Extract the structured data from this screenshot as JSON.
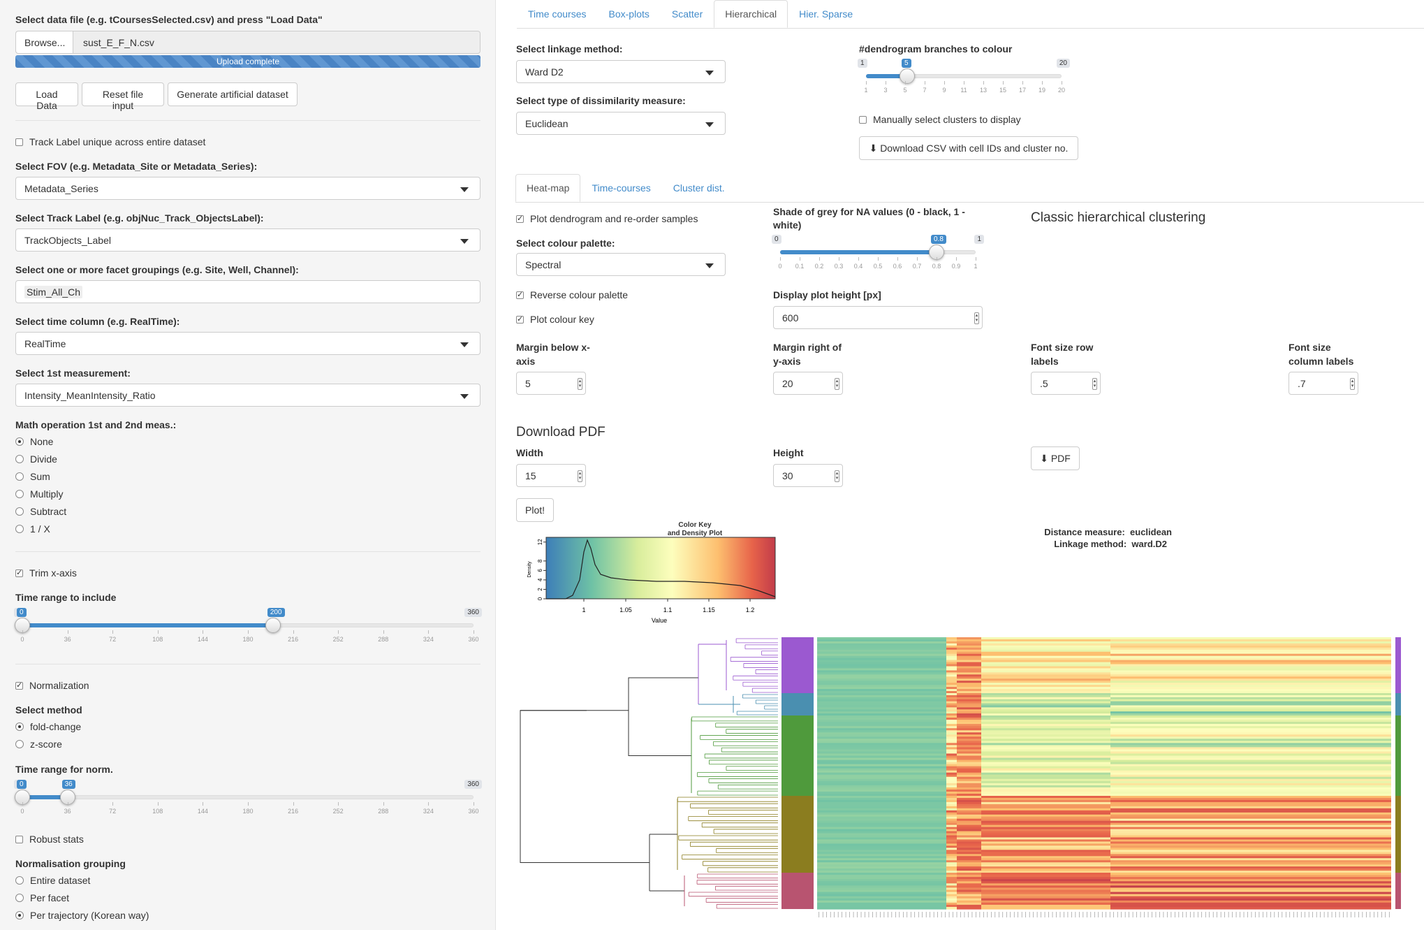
{
  "sidebar": {
    "file_label": "Select data file (e.g. tCoursesSelected.csv) and press \"Load Data\"",
    "browse_label": "Browse...",
    "file_name": "sust_E_F_N.csv",
    "upload_status": "Upload complete",
    "load_data": "Load Data",
    "reset_file": "Reset file input",
    "generate_artificial": "Generate artificial dataset",
    "track_unique_label": "Track Label unique across entire dataset",
    "fov_label": "Select FOV (e.g. Metadata_Site or Metadata_Series):",
    "fov_value": "Metadata_Series",
    "track_label": "Select Track Label (e.g. objNuc_Track_ObjectsLabel):",
    "track_value": "TrackObjects_Label",
    "facet_label": "Select one or more facet groupings (e.g. Site, Well, Channel):",
    "facet_value": "Stim_All_Ch",
    "time_label": "Select time column (e.g. RealTime):",
    "time_value": "RealTime",
    "meas_label": "Select 1st measurement:",
    "meas_value": "Intensity_MeanIntensity_Ratio",
    "math_label": "Math operation 1st and 2nd meas.:",
    "math_options": [
      "None",
      "Divide",
      "Sum",
      "Multiply",
      "Subtract",
      "1 / X"
    ],
    "trim_label": "Trim x-axis",
    "time_range_label": "Time range to include",
    "time_range": {
      "min": 0,
      "max": 360,
      "from": 0,
      "to": 200,
      "ticks": [
        "0",
        "36",
        "72",
        "108",
        "144",
        "180",
        "216",
        "252",
        "288",
        "324",
        "360"
      ]
    },
    "norm_label": "Normalization",
    "method_label": "Select method",
    "method_options": [
      "fold-change",
      "z-score"
    ],
    "norm_range_label": "Time range for norm.",
    "norm_range": {
      "min": 0,
      "max": 360,
      "from": 0,
      "to": 36
    },
    "robust_label": "Robust stats",
    "grouping_label": "Normalisation grouping",
    "grouping_options": [
      "Entire dataset",
      "Per facet",
      "Per trajectory (Korean way)"
    ]
  },
  "main_tabs": [
    "Time courses",
    "Box-plots",
    "Scatter",
    "Hierarchical",
    "Hier. Sparse"
  ],
  "linkage_label": "Select linkage method:",
  "linkage_value": "Ward D2",
  "dissim_label": "Select type of dissimilarity measure:",
  "dissim_value": "Euclidean",
  "branches_label": "#dendrogram branches to colour",
  "branches": {
    "min": 1,
    "max": 20,
    "value": 5,
    "ticks": [
      "1",
      "3",
      "5",
      "7",
      "9",
      "11",
      "13",
      "15",
      "17",
      "19",
      "20"
    ]
  },
  "manual_clusters_label": "Manually select clusters to display",
  "download_csv_label": "Download CSV with cell IDs and cluster no.",
  "sub_tabs": [
    "Heat-map",
    "Time-courses",
    "Cluster dist."
  ],
  "plot_dendro_label": "Plot dendrogram and re-order samples",
  "palette_label": "Select colour palette:",
  "palette_value": "Spectral",
  "reverse_label": "Reverse colour palette",
  "colour_key_label": "Plot colour key",
  "na_label": "Shade of grey for NA values (0 - black, 1 - white)",
  "na_slider": {
    "min": 0,
    "max": 1,
    "value": 0.8,
    "ticks": [
      "0",
      "0.1",
      "0.2",
      "0.3",
      "0.4",
      "0.5",
      "0.6",
      "0.7",
      "0.8",
      "0.9",
      "1"
    ]
  },
  "height_label": "Display plot height [px]",
  "height_value": "600",
  "section_title": "Classic hierarchical clustering",
  "margin_below_label": "Margin below x-axis",
  "margin_below_value": "5",
  "margin_right_label": "Margin right of y-axis",
  "margin_right_value": "20",
  "font_row_label": "Font size row labels",
  "font_row_value": ".5",
  "font_col_label": "Font size column labels",
  "font_col_value": ".7",
  "download_pdf_title": "Download PDF",
  "width_label": "Width",
  "width_value": "15",
  "pdf_height_label": "Height",
  "pdf_height_value": "30",
  "pdf_button": "PDF",
  "plot_button": "Plot!",
  "colorkey": {
    "title1": "Color Key",
    "title2": "and Density Plot",
    "xlabel": "Value",
    "ylabel": "Density",
    "xticks": [
      "1",
      "1.05",
      "1.1",
      "1.15",
      "1.2"
    ],
    "yticks": [
      "0",
      "2",
      "4",
      "6",
      "8",
      "12"
    ]
  },
  "distance_text": "Distance measure:  euclidean",
  "linkage_text": "Linkage method:  ward.D2",
  "colors": {
    "accent": "#428bca",
    "cluster1": "#9b59d0",
    "cluster2": "#4a8fb0",
    "cluster3": "#4f9a3c",
    "cluster4": "#8b7d1f",
    "cluster5": "#b85470"
  }
}
